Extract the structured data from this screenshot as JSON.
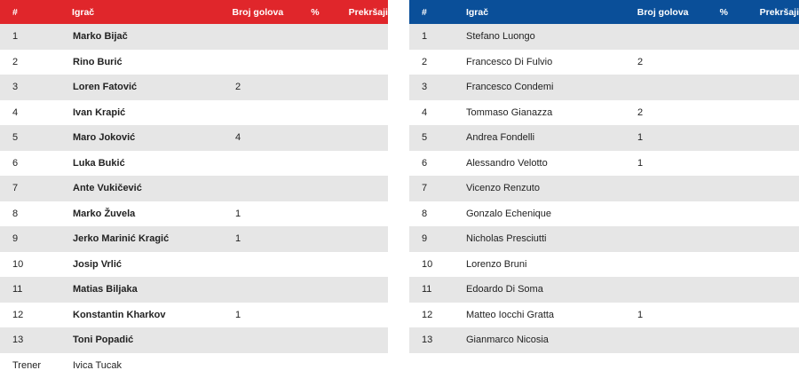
{
  "columns": {
    "num": "#",
    "player": "Igrač",
    "goals": "Broj golova",
    "pct": "%",
    "fouls": "Prekršaji"
  },
  "colors": {
    "home": "#e0262b",
    "away": "#0a4f99",
    "stripe": "#e6e6e6"
  },
  "home": {
    "players": [
      {
        "num": "1",
        "name": "Marko Bijač",
        "goals": ""
      },
      {
        "num": "2",
        "name": "Rino Burić",
        "goals": ""
      },
      {
        "num": "3",
        "name": "Loren Fatović",
        "goals": "2"
      },
      {
        "num": "4",
        "name": "Ivan Krapić",
        "goals": ""
      },
      {
        "num": "5",
        "name": "Maro Joković",
        "goals": "4"
      },
      {
        "num": "6",
        "name": "Luka Bukić",
        "goals": ""
      },
      {
        "num": "7",
        "name": "Ante Vukičević",
        "goals": ""
      },
      {
        "num": "8",
        "name": "Marko Žuvela",
        "goals": "1"
      },
      {
        "num": "9",
        "name": "Jerko Marinić Kragić",
        "goals": "1"
      },
      {
        "num": "10",
        "name": "Josip Vrlić",
        "goals": ""
      },
      {
        "num": "11",
        "name": "Matias Biljaka",
        "goals": ""
      },
      {
        "num": "12",
        "name": "Konstantin Kharkov",
        "goals": "1"
      },
      {
        "num": "13",
        "name": "Toni Popadić",
        "goals": ""
      }
    ],
    "coach_label": "Trener",
    "coach_name": "Ivica Tucak"
  },
  "away": {
    "players": [
      {
        "num": "1",
        "name": "Stefano Luongo",
        "goals": ""
      },
      {
        "num": "2",
        "name": "Francesco Di Fulvio",
        "goals": "2"
      },
      {
        "num": "3",
        "name": "Francesco Condemi",
        "goals": ""
      },
      {
        "num": "4",
        "name": "Tommaso Gianazza",
        "goals": "2"
      },
      {
        "num": "5",
        "name": "Andrea Fondelli",
        "goals": "1"
      },
      {
        "num": "6",
        "name": "Alessandro Velotto",
        "goals": "1"
      },
      {
        "num": "7",
        "name": "Vicenzo Renzuto",
        "goals": ""
      },
      {
        "num": "8",
        "name": "Gonzalo Echenique",
        "goals": ""
      },
      {
        "num": "9",
        "name": "Nicholas Presciutti",
        "goals": ""
      },
      {
        "num": "10",
        "name": "Lorenzo Bruni",
        "goals": ""
      },
      {
        "num": "11",
        "name": "Edoardo Di Soma",
        "goals": ""
      },
      {
        "num": "12",
        "name": "Matteo Iocchi Gratta",
        "goals": "1"
      },
      {
        "num": "13",
        "name": "Gianmarco Nicosia",
        "goals": ""
      }
    ]
  }
}
